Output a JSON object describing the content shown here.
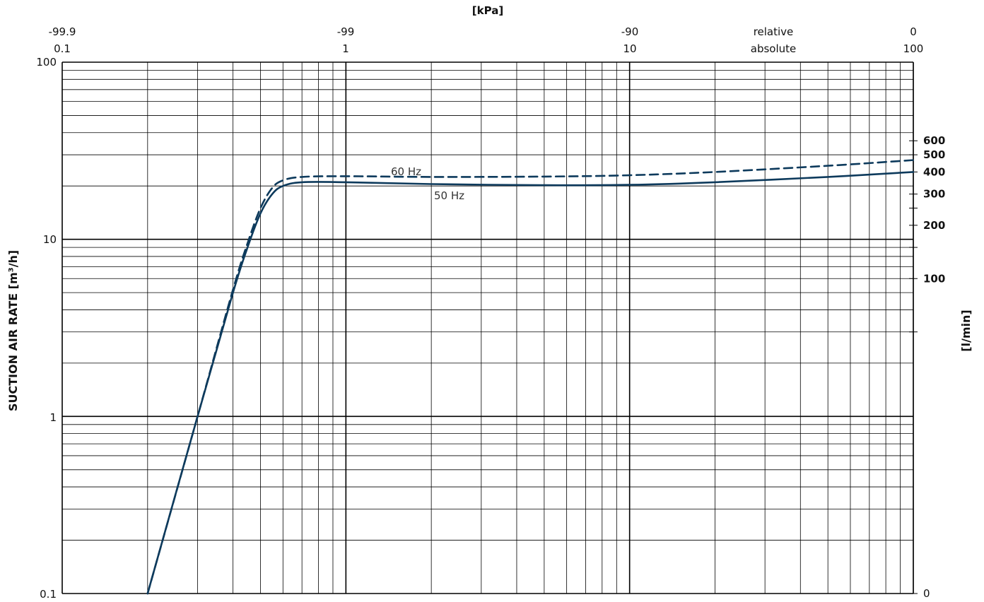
{
  "chart_data": {
    "type": "line",
    "title": "",
    "top_axis_title": "[kPa]",
    "ylabel_left": "SUCTION AIR RATE  [m³/h]",
    "ylabel_right": "[l/min]",
    "x_scale": "log",
    "y_scale": "log",
    "xlim": [
      0.1,
      100
    ],
    "ylim": [
      0.1,
      100
    ],
    "grid": true,
    "x_ticks": [
      {
        "absolute": "0.1",
        "relative": "-99.9",
        "x": 0.1
      },
      {
        "absolute": "1",
        "relative": "-99",
        "x": 1
      },
      {
        "absolute": "10",
        "relative": "-90",
        "x": 10
      },
      {
        "absolute": "100",
        "relative": "0",
        "x": 100
      }
    ],
    "x_axis_names": {
      "relative": "relative",
      "absolute": "absolute"
    },
    "y_ticks_left": [
      {
        "label": "0.1",
        "y": 0.1
      },
      {
        "label": "1",
        "y": 1
      },
      {
        "label": "10",
        "y": 10
      },
      {
        "label": "100",
        "y": 100
      }
    ],
    "y_ticks_right": [
      {
        "label": "0",
        "y": 0.1
      },
      {
        "label": "100",
        "y": 6
      },
      {
        "label": "200",
        "y": 12
      },
      {
        "label": "300",
        "y": 18
      },
      {
        "label": "400",
        "y": 24
      },
      {
        "label": "500",
        "y": 30
      },
      {
        "label": "600",
        "y": 36
      }
    ],
    "x_unit": "kPa",
    "series": [
      {
        "name": "50 Hz",
        "style": "solid",
        "color": "#0d3a5c",
        "x": [
          0.2,
          0.3,
          0.4,
          0.45,
          0.5,
          0.55,
          0.6,
          0.7,
          1,
          2,
          5,
          10,
          20,
          50,
          100
        ],
        "y": [
          0.1,
          1.0,
          5.0,
          9.0,
          14.0,
          18.0,
          20.0,
          21.0,
          21.0,
          20.5,
          20.2,
          20.3,
          21.0,
          22.5,
          24.0
        ]
      },
      {
        "name": "60 Hz",
        "style": "dashed",
        "color": "#0d3a5c",
        "x": [
          0.2,
          0.3,
          0.4,
          0.45,
          0.5,
          0.55,
          0.6,
          0.7,
          1,
          2,
          5,
          10,
          20,
          50,
          100
        ],
        "y": [
          0.1,
          1.0,
          5.2,
          9.5,
          15.0,
          19.5,
          21.5,
          22.5,
          22.7,
          22.5,
          22.6,
          23.0,
          24.0,
          26.0,
          28.0
        ]
      }
    ]
  }
}
